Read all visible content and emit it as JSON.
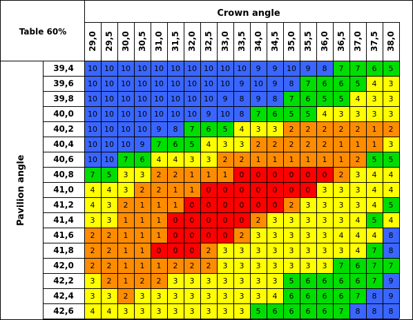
{
  "corner_label": "Table 60%",
  "x_axis_label": "Crown angle",
  "y_axis_label": "Pavilion angle",
  "colors": {
    "0": "#ff0000",
    "1": "#ff8c00",
    "2": "#ff8c00",
    "3": "#ffff00",
    "4": "#ffff00",
    "5": "#00dd00",
    "6": "#00dd00",
    "7": "#00dd00",
    "8": "#3a66ff",
    "9": "#3a66ff",
    "10": "#3a66ff",
    "grid": "#000000",
    "text": "#000000"
  },
  "chart_data": {
    "type": "heatmap",
    "title": "",
    "xlabel": "Crown angle",
    "ylabel": "Pavilion angle",
    "x_categories": [
      "29,0",
      "29,5",
      "30,0",
      "30,5",
      "31,0",
      "31,5",
      "32,0",
      "32,5",
      "33,0",
      "33,5",
      "34,0",
      "34,5",
      "35,0",
      "35,5",
      "36,0",
      "36,5",
      "37,0",
      "37,5",
      "38,0"
    ],
    "y_categories": [
      "39,4",
      "39,6",
      "39,8",
      "40,0",
      "40,2",
      "40,4",
      "40,6",
      "40,8",
      "41,0",
      "41,2",
      "41,4",
      "41,6",
      "41,8",
      "42,0",
      "42,2",
      "42,4",
      "42,6"
    ],
    "values": [
      [
        10,
        10,
        10,
        10,
        10,
        10,
        10,
        10,
        10,
        10,
        9,
        9,
        10,
        9,
        8,
        7,
        7,
        6,
        5
      ],
      [
        10,
        10,
        10,
        10,
        10,
        10,
        10,
        10,
        10,
        9,
        10,
        9,
        8,
        7,
        6,
        6,
        5,
        4,
        3
      ],
      [
        10,
        10,
        10,
        10,
        10,
        10,
        10,
        10,
        9,
        8,
        9,
        8,
        7,
        6,
        5,
        5,
        4,
        3,
        3
      ],
      [
        10,
        10,
        10,
        10,
        10,
        10,
        10,
        9,
        10,
        8,
        7,
        6,
        5,
        5,
        4,
        3,
        3,
        3,
        3
      ],
      [
        10,
        10,
        10,
        10,
        9,
        8,
        7,
        6,
        5,
        4,
        3,
        3,
        2,
        2,
        2,
        2,
        2,
        1,
        2
      ],
      [
        10,
        10,
        10,
        9,
        7,
        6,
        5,
        4,
        3,
        3,
        2,
        2,
        2,
        2,
        2,
        1,
        1,
        1,
        3
      ],
      [
        10,
        10,
        7,
        6,
        4,
        4,
        3,
        3,
        2,
        2,
        1,
        1,
        1,
        1,
        1,
        1,
        2,
        5,
        5
      ],
      [
        7,
        5,
        3,
        3,
        2,
        2,
        1,
        1,
        1,
        0,
        0,
        0,
        0,
        0,
        0,
        2,
        3,
        4,
        4
      ],
      [
        4,
        4,
        3,
        2,
        2,
        1,
        1,
        0,
        0,
        0,
        0,
        0,
        0,
        0,
        3,
        3,
        3,
        4,
        4
      ],
      [
        4,
        3,
        2,
        1,
        1,
        1,
        0,
        0,
        0,
        0,
        0,
        0,
        2,
        3,
        3,
        3,
        3,
        4,
        5
      ],
      [
        3,
        3,
        1,
        1,
        1,
        0,
        0,
        0,
        0,
        0,
        2,
        3,
        3,
        3,
        3,
        3,
        4,
        5,
        4
      ],
      [
        2,
        2,
        1,
        1,
        1,
        0,
        0,
        0,
        0,
        2,
        3,
        3,
        3,
        3,
        3,
        4,
        4,
        4,
        8
      ],
      [
        2,
        2,
        1,
        1,
        0,
        0,
        0,
        2,
        3,
        3,
        3,
        3,
        3,
        3,
        3,
        3,
        4,
        7,
        8
      ],
      [
        2,
        2,
        1,
        1,
        1,
        2,
        2,
        2,
        3,
        3,
        3,
        3,
        3,
        3,
        3,
        7,
        6,
        7,
        7
      ],
      [
        3,
        2,
        1,
        2,
        2,
        3,
        3,
        3,
        3,
        3,
        3,
        3,
        5,
        6,
        6,
        6,
        6,
        7,
        9
      ],
      [
        3,
        3,
        2,
        3,
        3,
        3,
        3,
        3,
        3,
        3,
        3,
        4,
        6,
        6,
        6,
        6,
        7,
        8,
        9
      ],
      [
        4,
        4,
        3,
        3,
        3,
        3,
        3,
        3,
        3,
        3,
        5,
        6,
        6,
        6,
        6,
        7,
        8,
        8,
        8
      ]
    ]
  }
}
